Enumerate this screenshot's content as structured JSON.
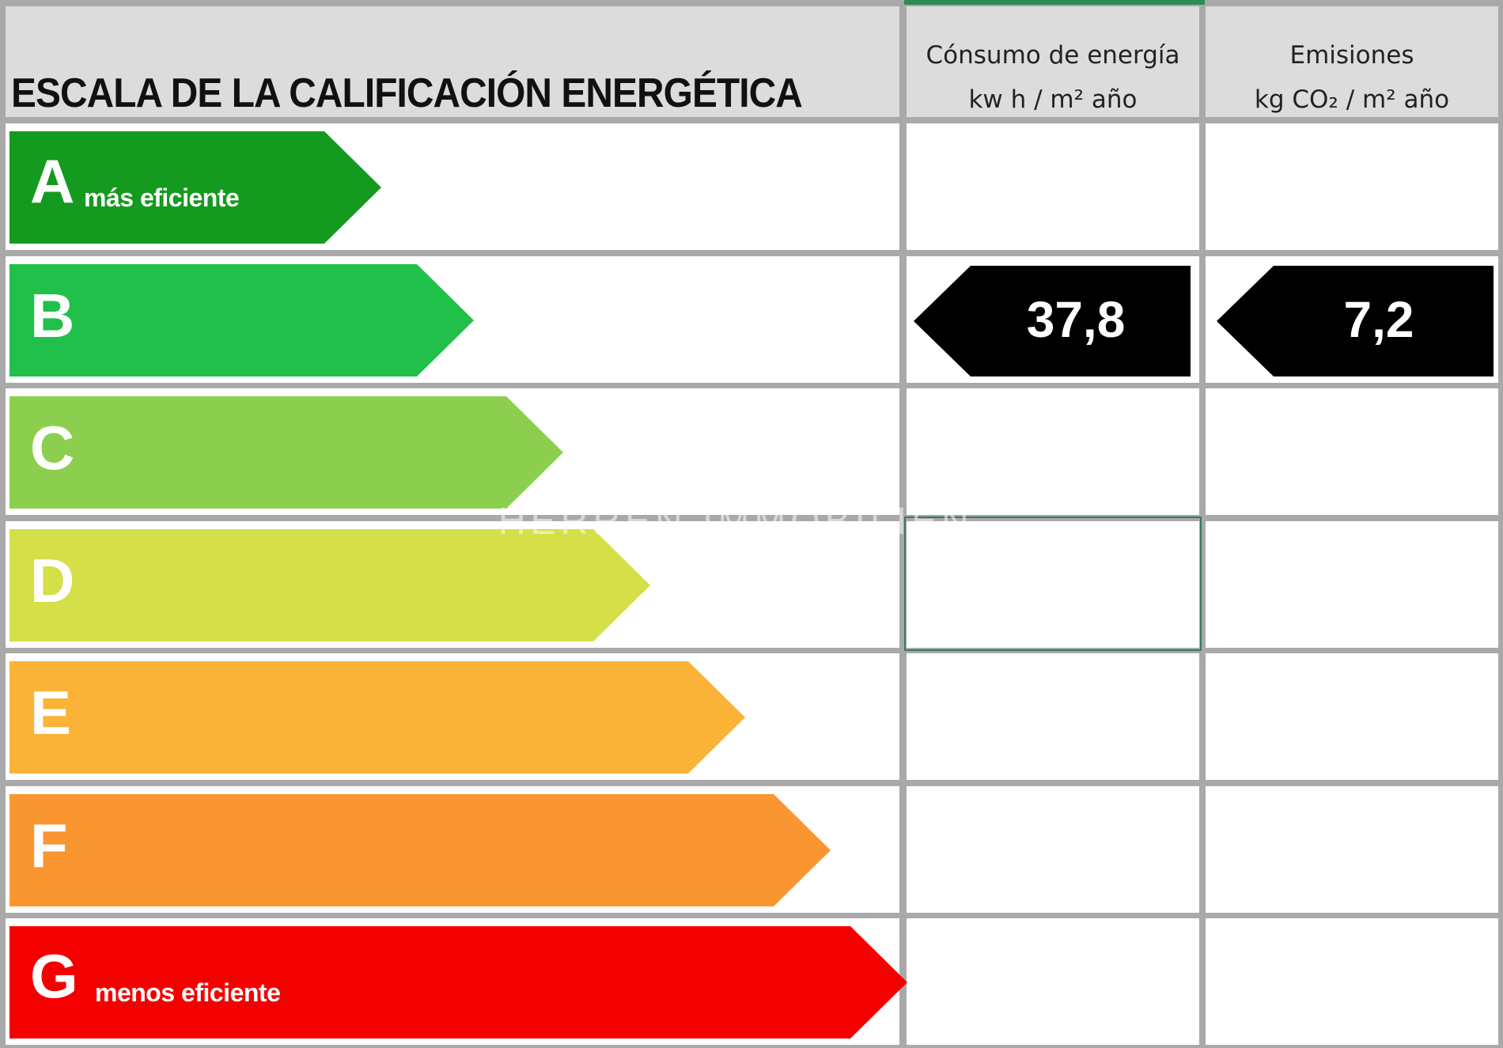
{
  "title": "ESCALA DE LA CALIFICACIÓN ENERGÉTICA",
  "columns": {
    "consumo": {
      "line1": "Cónsumo de energía",
      "line2": "kw h / m² año"
    },
    "emisiones": {
      "line1": "Emisiones",
      "line2": "kg CO₂ / m² año"
    }
  },
  "ratings": [
    {
      "letter": "A",
      "sublabel": "más eficiente",
      "color": "#149a1e"
    },
    {
      "letter": "B",
      "sublabel": "",
      "color": "#20c04a"
    },
    {
      "letter": "C",
      "sublabel": "",
      "color": "#8ccf4f"
    },
    {
      "letter": "D",
      "sublabel": "",
      "color": "#d5df48"
    },
    {
      "letter": "E",
      "sublabel": "",
      "color": "#fbb337"
    },
    {
      "letter": "F",
      "sublabel": "",
      "color": "#fa9632"
    },
    {
      "letter": "G",
      "sublabel": "menos eficiente",
      "color": "#f40000"
    }
  ],
  "current": {
    "rating": "B",
    "consumo_value": "37,8",
    "emisiones_value": "7,2",
    "badge_color": "#000000"
  },
  "watermark": "HERREN IMMOBILIEN"
}
